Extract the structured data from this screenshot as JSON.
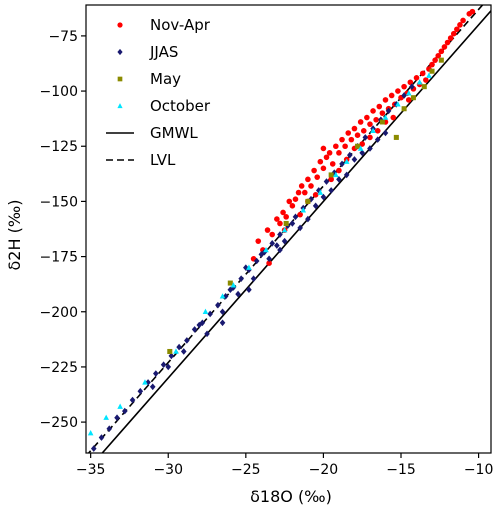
{
  "chart_data": {
    "type": "scatter",
    "title": "",
    "xlabel": "δ18O (‰)",
    "ylabel": "δ2H (‰)",
    "xlim": [
      -35.3,
      -9.2
    ],
    "ylim": [
      -264,
      -61
    ],
    "x_ticks": [
      -35,
      -30,
      -25,
      -20,
      -15,
      -10
    ],
    "y_ticks": [
      -250,
      -225,
      -200,
      -175,
      -150,
      -125,
      -100,
      -75
    ],
    "grid": false,
    "legend_position": "top-left",
    "series": [
      {
        "name": "Nov-Apr",
        "marker": "circle",
        "color": "#ff0000",
        "points": [
          [
            -24.2,
            -168
          ],
          [
            -23.9,
            -172
          ],
          [
            -23.6,
            -163
          ],
          [
            -23.3,
            -165
          ],
          [
            -23.0,
            -158
          ],
          [
            -22.8,
            -160
          ],
          [
            -22.6,
            -155
          ],
          [
            -22.4,
            -157
          ],
          [
            -22.2,
            -150
          ],
          [
            -22.0,
            -152
          ],
          [
            -21.8,
            -149
          ],
          [
            -21.6,
            -146
          ],
          [
            -21.4,
            -143
          ],
          [
            -21.2,
            -146
          ],
          [
            -21.0,
            -140
          ],
          [
            -20.8,
            -143
          ],
          [
            -20.6,
            -136
          ],
          [
            -20.4,
            -139
          ],
          [
            -20.2,
            -132
          ],
          [
            -20.0,
            -135
          ],
          [
            -19.8,
            -130
          ],
          [
            -19.6,
            -128
          ],
          [
            -19.4,
            -133
          ],
          [
            -19.2,
            -125
          ],
          [
            -19.0,
            -128
          ],
          [
            -18.8,
            -122
          ],
          [
            -18.6,
            -125
          ],
          [
            -18.4,
            -119
          ],
          [
            -18.2,
            -122
          ],
          [
            -18.0,
            -117
          ],
          [
            -17.8,
            -120
          ],
          [
            -17.6,
            -114
          ],
          [
            -17.4,
            -118
          ],
          [
            -17.2,
            -112
          ],
          [
            -17.0,
            -115
          ],
          [
            -16.8,
            -109
          ],
          [
            -16.6,
            -113
          ],
          [
            -16.4,
            -107
          ],
          [
            -16.2,
            -110
          ],
          [
            -16.0,
            -104
          ],
          [
            -15.8,
            -108
          ],
          [
            -15.6,
            -102
          ],
          [
            -15.4,
            -106
          ],
          [
            -15.2,
            -100
          ],
          [
            -15.0,
            -103
          ],
          [
            -14.8,
            -98
          ],
          [
            -14.6,
            -101
          ],
          [
            -14.4,
            -96
          ],
          [
            -14.2,
            -99
          ],
          [
            -14.0,
            -94
          ],
          [
            -13.8,
            -97
          ],
          [
            -13.6,
            -92
          ],
          [
            -13.4,
            -95
          ],
          [
            -13.2,
            -90
          ],
          [
            -13.0,
            -88
          ],
          [
            -12.8,
            -86
          ],
          [
            -12.6,
            -84
          ],
          [
            -12.4,
            -82
          ],
          [
            -12.2,
            -80
          ],
          [
            -12.0,
            -78
          ],
          [
            -11.8,
            -76
          ],
          [
            -11.6,
            -74
          ],
          [
            -11.4,
            -72
          ],
          [
            -11.2,
            -70
          ],
          [
            -11.0,
            -68
          ],
          [
            -10.6,
            -65
          ],
          [
            -10.4,
            -64
          ],
          [
            -22.5,
            -163
          ],
          [
            -21.5,
            -156
          ],
          [
            -20.5,
            -147
          ],
          [
            -19.5,
            -140
          ],
          [
            -18.5,
            -131
          ],
          [
            -17.5,
            -124
          ],
          [
            -16.5,
            -118
          ],
          [
            -15.5,
            -112
          ],
          [
            -21.0,
            -150
          ],
          [
            -19.0,
            -136
          ],
          [
            -17.0,
            -121
          ],
          [
            -24.5,
            -176
          ],
          [
            -23.5,
            -178
          ],
          [
            -20.0,
            -126
          ],
          [
            -18.0,
            -126
          ],
          [
            -16.0,
            -114
          ],
          [
            -14.5,
            -104
          ]
        ]
      },
      {
        "name": "JJAS",
        "marker": "diamond",
        "color": "#191970",
        "points": [
          [
            -34.8,
            -262
          ],
          [
            -34.3,
            -257
          ],
          [
            -33.8,
            -253
          ],
          [
            -33.3,
            -248
          ],
          [
            -32.8,
            -245
          ],
          [
            -32.3,
            -240
          ],
          [
            -31.8,
            -236
          ],
          [
            -31.3,
            -232
          ],
          [
            -30.8,
            -228
          ],
          [
            -30.3,
            -224
          ],
          [
            -29.8,
            -220
          ],
          [
            -29.3,
            -216
          ],
          [
            -28.8,
            -213
          ],
          [
            -28.3,
            -208
          ],
          [
            -27.8,
            -205
          ],
          [
            -27.3,
            -201
          ],
          [
            -26.8,
            -197
          ],
          [
            -26.3,
            -193
          ],
          [
            -25.8,
            -189
          ],
          [
            -25.3,
            -185
          ],
          [
            -24.8,
            -181
          ],
          [
            -24.3,
            -177
          ],
          [
            -23.8,
            -173
          ],
          [
            -23.3,
            -169
          ],
          [
            -22.8,
            -165
          ],
          [
            -22.3,
            -161
          ],
          [
            -21.8,
            -157
          ],
          [
            -21.3,
            -153
          ],
          [
            -20.8,
            -149
          ],
          [
            -20.3,
            -145
          ],
          [
            -19.8,
            -141
          ],
          [
            -19.3,
            -137
          ],
          [
            -18.8,
            -133
          ],
          [
            -18.3,
            -129
          ],
          [
            -17.8,
            -125
          ],
          [
            -17.3,
            -121
          ],
          [
            -16.8,
            -117
          ],
          [
            -16.3,
            -113
          ],
          [
            -15.8,
            -109
          ],
          [
            -15.3,
            -106
          ],
          [
            -14.8,
            -102
          ],
          [
            -14.3,
            -98
          ],
          [
            -27.5,
            -210
          ],
          [
            -26.5,
            -200
          ],
          [
            -25.5,
            -192
          ],
          [
            -24.5,
            -185
          ],
          [
            -23.5,
            -176
          ],
          [
            -22.5,
            -168
          ],
          [
            -21.5,
            -162
          ],
          [
            -20.5,
            -152
          ],
          [
            -19.5,
            -145
          ],
          [
            -18.5,
            -138
          ],
          [
            -17.5,
            -128
          ],
          [
            -16.5,
            -122
          ],
          [
            -28.0,
            -206
          ],
          [
            -26.0,
            -190
          ],
          [
            -24.0,
            -174
          ],
          [
            -22.0,
            -160
          ],
          [
            -20.0,
            -148
          ],
          [
            -18.0,
            -131
          ],
          [
            -16.0,
            -119
          ],
          [
            -30.0,
            -225
          ],
          [
            -31.0,
            -234
          ],
          [
            -29.0,
            -218
          ],
          [
            -25.0,
            -180
          ],
          [
            -23.0,
            -170
          ],
          [
            -21.0,
            -158
          ],
          [
            -19.0,
            -140
          ],
          [
            -17.0,
            -126
          ],
          [
            -26.5,
            -205
          ],
          [
            -24.8,
            -190
          ],
          [
            -22.8,
            -172
          ]
        ]
      },
      {
        "name": "May",
        "marker": "square",
        "color": "#8b8b00",
        "points": [
          [
            -29.9,
            -218
          ],
          [
            -26.0,
            -187
          ],
          [
            -22.4,
            -160
          ],
          [
            -21.0,
            -150
          ],
          [
            -19.5,
            -138
          ],
          [
            -17.8,
            -125
          ],
          [
            -16.2,
            -114
          ],
          [
            -15.3,
            -121
          ],
          [
            -14.8,
            -108
          ],
          [
            -14.2,
            -103
          ],
          [
            -13.5,
            -98
          ],
          [
            -13.0,
            -91
          ],
          [
            -12.4,
            -86
          ]
        ]
      },
      {
        "name": "October",
        "marker": "triangle",
        "color": "#00e5ff",
        "points": [
          [
            -35.0,
            -255
          ],
          [
            -34.0,
            -248
          ],
          [
            -33.1,
            -243
          ],
          [
            -31.5,
            -232
          ],
          [
            -29.5,
            -218
          ],
          [
            -27.6,
            -200
          ],
          [
            -26.5,
            -193
          ],
          [
            -25.8,
            -188
          ],
          [
            -24.8,
            -180
          ],
          [
            -23.7,
            -172
          ],
          [
            -22.5,
            -163
          ],
          [
            -21.3,
            -154
          ],
          [
            -20.2,
            -146
          ],
          [
            -19.2,
            -138
          ],
          [
            -18.5,
            -132
          ],
          [
            -17.6,
            -126
          ],
          [
            -16.8,
            -118
          ],
          [
            -16.0,
            -112
          ],
          [
            -15.2,
            -106
          ],
          [
            -14.5,
            -101
          ],
          [
            -13.8,
            -96
          ],
          [
            -13.2,
            -93
          ]
        ]
      }
    ],
    "lines": [
      {
        "name": "GMWL",
        "style": "solid",
        "color": "#000000",
        "slope": 8,
        "intercept": 10
      },
      {
        "name": "LVL",
        "style": "dashed",
        "color": "#000000",
        "slope": 8,
        "intercept": 17
      }
    ]
  }
}
